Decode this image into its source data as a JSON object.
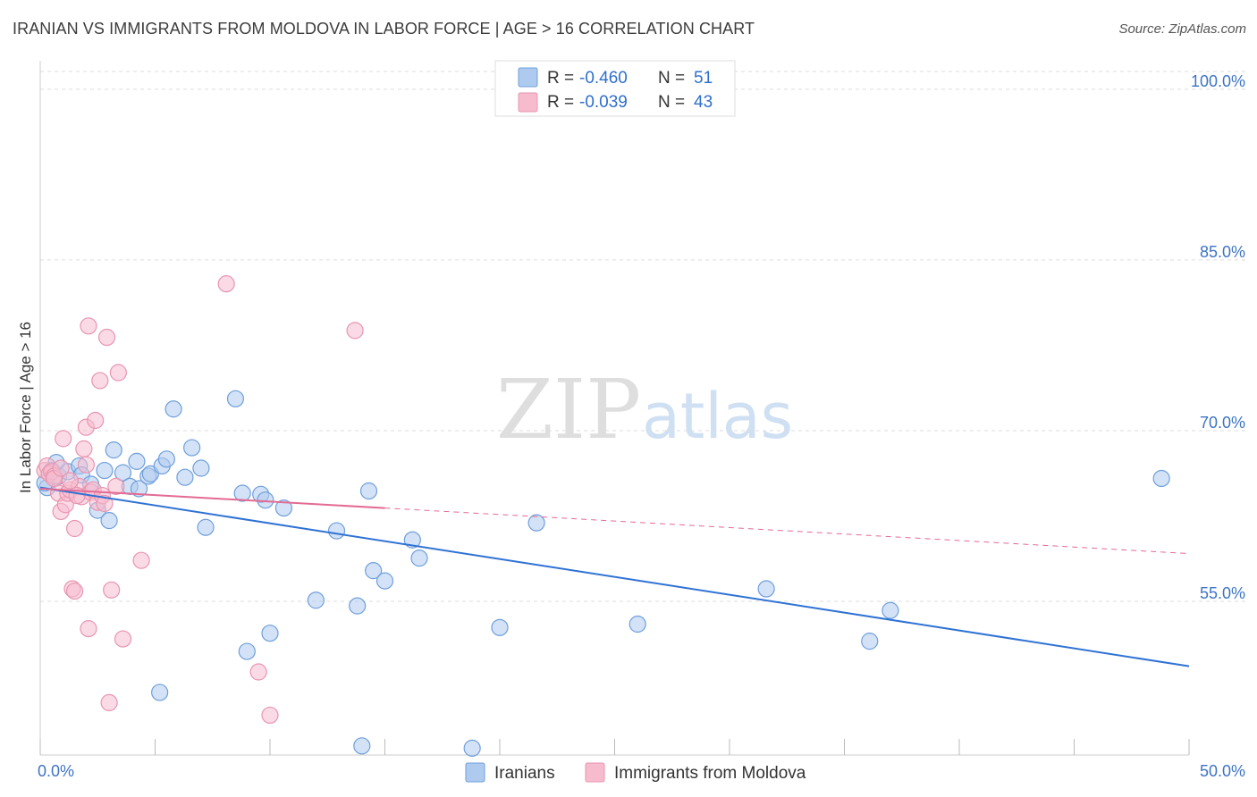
{
  "title": "IRANIAN VS IMMIGRANTS FROM MOLDOVA IN LABOR FORCE | AGE > 16 CORRELATION CHART",
  "source": "Source: ZipAtlas.com",
  "watermark": {
    "zip": "ZIP",
    "atlas": "atlas"
  },
  "colors": {
    "iranians_fill": "#aecbef",
    "iranians_stroke": "#6f9fdb",
    "iranians_line": "#2f72d4",
    "moldova_fill": "#f6bccd",
    "moldova_stroke": "#e896b0",
    "moldova_line": "#e36a93",
    "tick_label": "#3d74c5",
    "grid": "#dddddd"
  },
  "legend": {
    "rows": [
      {
        "r_label": "R =",
        "r_value": "-0.460",
        "n_label": "N =",
        "n_value": "51"
      },
      {
        "r_label": "R =",
        "r_value": "-0.039",
        "n_label": "N =",
        "n_value": "43"
      }
    ]
  },
  "chart_data": {
    "type": "scatter",
    "title": "IRANIAN VS IMMIGRANTS FROM MOLDOVA IN LABOR FORCE | AGE > 16 CORRELATION CHART",
    "xlabel": "",
    "ylabel": "In Labor Force | Age > 16",
    "xlim": [
      0,
      50
    ],
    "ylim": [
      41.5,
      102.5
    ],
    "x_tick_labels": [
      "0.0%",
      "50.0%"
    ],
    "y_ticks": [
      55,
      70,
      85,
      100
    ],
    "y_tick_labels": [
      "55.0%",
      "70.0%",
      "85.0%",
      "100.0%"
    ],
    "grid": true,
    "legend_position": "bottom",
    "series": [
      {
        "name": "Iranians",
        "trend": {
          "x": [
            0,
            50
          ],
          "y": [
            65.0,
            49.3
          ]
        },
        "points": [
          [
            0.3,
            65.0
          ],
          [
            0.5,
            66.5
          ],
          [
            0.7,
            67.2
          ],
          [
            0.8,
            66.0
          ],
          [
            1.2,
            66.4
          ],
          [
            1.7,
            66.9
          ],
          [
            1.8,
            66.1
          ],
          [
            2.2,
            65.3
          ],
          [
            2.5,
            63.0
          ],
          [
            2.8,
            66.5
          ],
          [
            3.0,
            62.1
          ],
          [
            3.2,
            68.3
          ],
          [
            3.6,
            66.3
          ],
          [
            3.9,
            65.1
          ],
          [
            4.2,
            67.3
          ],
          [
            4.3,
            64.9
          ],
          [
            4.7,
            66.0
          ],
          [
            4.8,
            66.2
          ],
          [
            5.3,
            66.9
          ],
          [
            5.5,
            67.5
          ],
          [
            5.8,
            71.9
          ],
          [
            6.3,
            65.9
          ],
          [
            6.6,
            68.5
          ],
          [
            7.0,
            66.7
          ],
          [
            7.2,
            61.5
          ],
          [
            8.5,
            72.8
          ],
          [
            8.8,
            64.5
          ],
          [
            9.0,
            50.6
          ],
          [
            9.6,
            64.4
          ],
          [
            9.8,
            63.9
          ],
          [
            10.0,
            52.2
          ],
          [
            10.6,
            63.2
          ],
          [
            12.0,
            55.1
          ],
          [
            12.9,
            61.2
          ],
          [
            13.8,
            54.6
          ],
          [
            14.0,
            42.3
          ],
          [
            14.3,
            64.7
          ],
          [
            14.5,
            57.7
          ],
          [
            15.0,
            56.8
          ],
          [
            16.2,
            60.4
          ],
          [
            16.5,
            58.8
          ],
          [
            18.8,
            42.1
          ],
          [
            20.0,
            52.7
          ],
          [
            21.6,
            61.9
          ],
          [
            26.0,
            53.0
          ],
          [
            31.6,
            56.1
          ],
          [
            36.1,
            51.5
          ],
          [
            37.0,
            54.2
          ],
          [
            48.8,
            65.8
          ],
          [
            5.2,
            47.0
          ],
          [
            0.2,
            65.4
          ]
        ]
      },
      {
        "name": "Immigrants from Moldova",
        "trend": {
          "x": [
            0,
            15
          ],
          "y": [
            64.9,
            63.2
          ]
        },
        "trend_dashed": {
          "x": [
            15,
            50
          ],
          "y": [
            63.2,
            59.2
          ]
        },
        "points": [
          [
            0.2,
            66.5
          ],
          [
            0.3,
            66.9
          ],
          [
            0.4,
            66.2
          ],
          [
            0.5,
            66.4
          ],
          [
            0.6,
            66.0
          ],
          [
            0.8,
            64.5
          ],
          [
            0.9,
            62.9
          ],
          [
            1.0,
            69.3
          ],
          [
            1.1,
            63.5
          ],
          [
            1.2,
            64.5
          ],
          [
            1.3,
            64.8
          ],
          [
            1.4,
            56.1
          ],
          [
            1.5,
            61.4
          ],
          [
            1.5,
            55.9
          ],
          [
            1.7,
            65.1
          ],
          [
            1.8,
            64.2
          ],
          [
            1.9,
            68.4
          ],
          [
            2.0,
            67.0
          ],
          [
            2.0,
            70.3
          ],
          [
            2.1,
            79.2
          ],
          [
            2.1,
            52.6
          ],
          [
            2.2,
            64.6
          ],
          [
            2.3,
            64.8
          ],
          [
            2.4,
            70.9
          ],
          [
            2.5,
            63.7
          ],
          [
            2.6,
            74.4
          ],
          [
            2.7,
            64.3
          ],
          [
            2.8,
            63.6
          ],
          [
            2.9,
            78.2
          ],
          [
            3.0,
            46.1
          ],
          [
            3.1,
            56.0
          ],
          [
            3.3,
            65.1
          ],
          [
            3.4,
            75.1
          ],
          [
            3.6,
            51.7
          ],
          [
            4.4,
            58.6
          ],
          [
            8.1,
            82.9
          ],
          [
            9.5,
            48.8
          ],
          [
            10.0,
            45.0
          ],
          [
            13.7,
            78.8
          ],
          [
            0.6,
            65.8
          ],
          [
            1.6,
            64.3
          ],
          [
            0.9,
            66.7
          ],
          [
            1.3,
            65.6
          ]
        ]
      }
    ]
  }
}
